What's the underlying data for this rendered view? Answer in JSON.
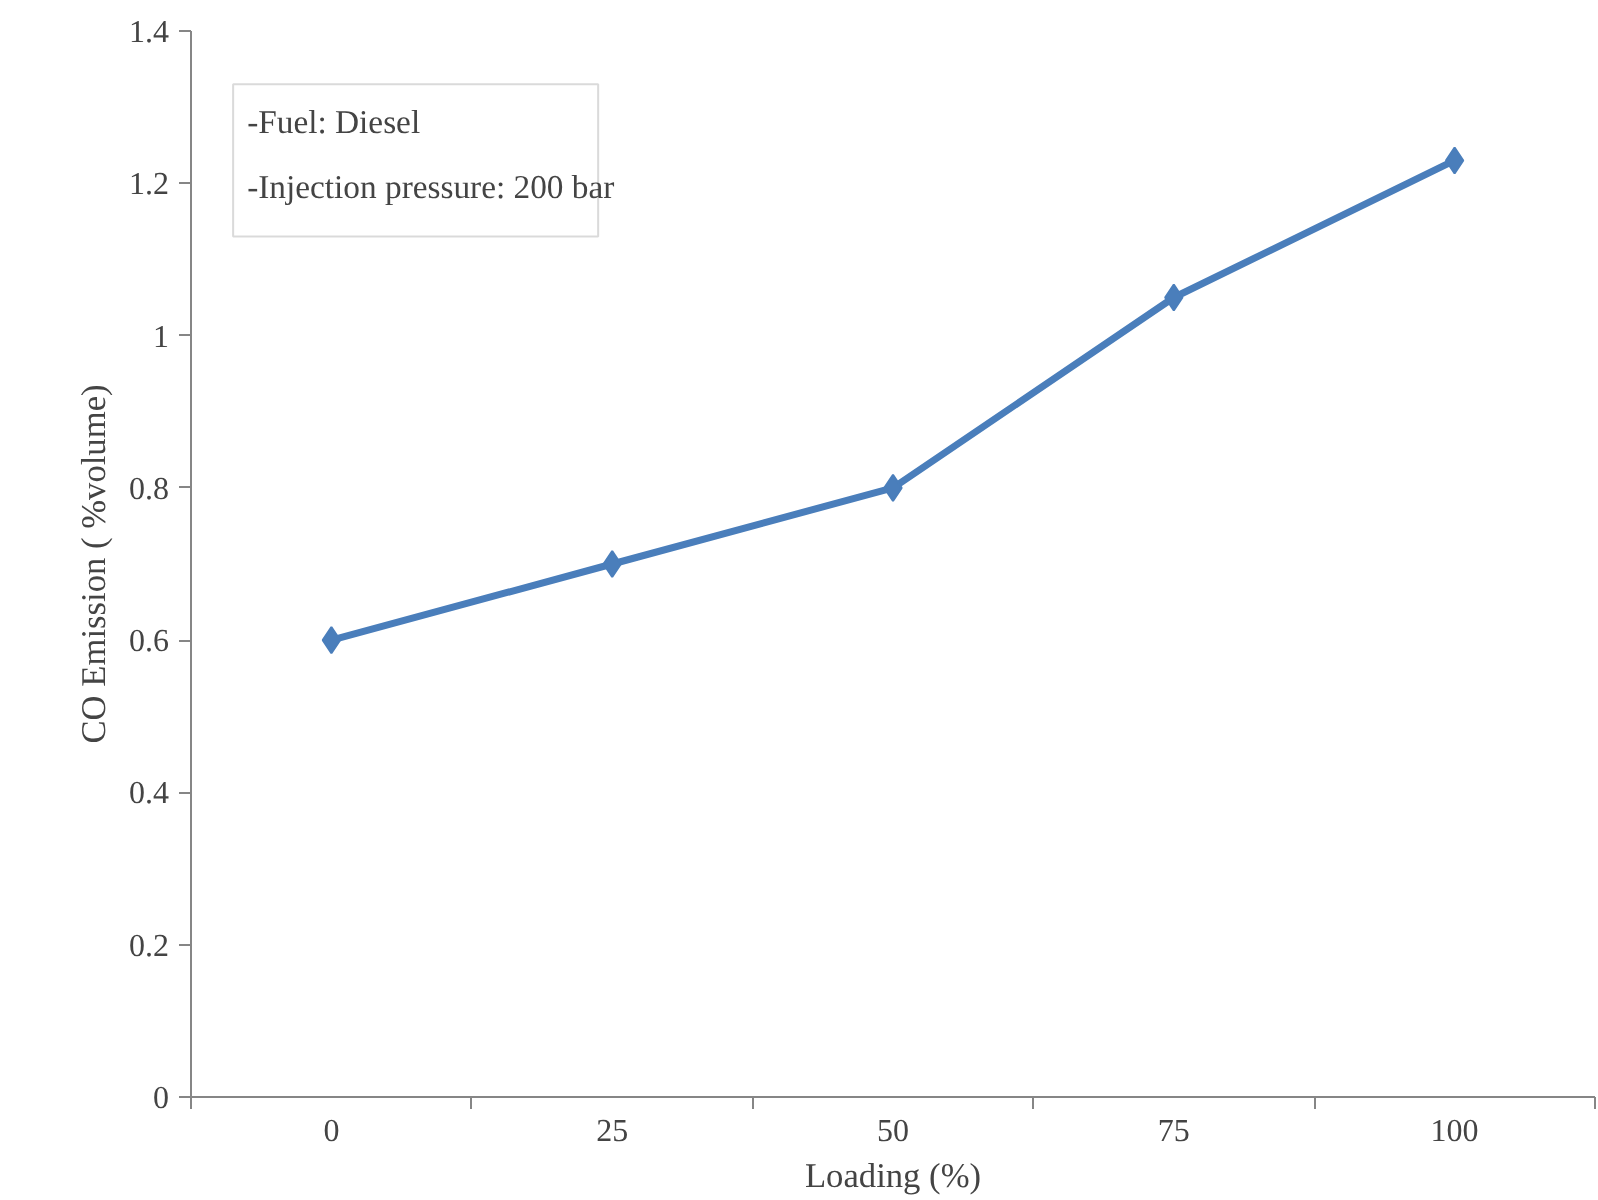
{
  "chart_data": {
    "type": "line",
    "xlabel": "Loading (%)",
    "ylabel": "CO Emission ( %volume)",
    "categories": [
      "0",
      "25",
      "50",
      "75",
      "100"
    ],
    "series": [
      {
        "color": "#4a7ebb",
        "values": [
          0.6,
          0.7,
          0.8,
          1.05,
          1.23
        ]
      }
    ],
    "ylim": [
      0,
      1.4
    ],
    "yticks": [
      0,
      0.2,
      0.4,
      0.6,
      0.8,
      1,
      1.2,
      1.4
    ],
    "annotations": [
      "-Fuel: Diesel",
      "-Injection pressure: 200 bar"
    ],
    "marker": "diamond",
    "line_style": "solid",
    "grid": false
  }
}
